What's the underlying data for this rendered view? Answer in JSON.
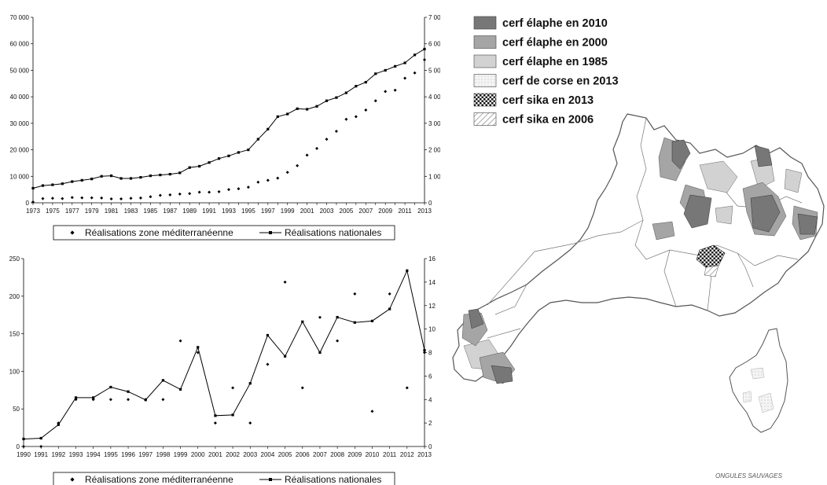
{
  "chart_data": [
    {
      "type": "line",
      "x": [
        "1973",
        "1974",
        "1975",
        "1976",
        "1977",
        "1978",
        "1979",
        "1980",
        "1981",
        "1982",
        "1983",
        "1984",
        "1985",
        "1986",
        "1987",
        "1988",
        "1989",
        "1990",
        "1991",
        "1992",
        "1993",
        "1994",
        "1995",
        "1996",
        "1997",
        "1998",
        "1999",
        "2000",
        "2001",
        "2002",
        "2003",
        "2004",
        "2005",
        "2006",
        "2007",
        "2008",
        "2009",
        "2010",
        "2011",
        "2012",
        "2013"
      ],
      "x_tick_labels": [
        "1973",
        "1975",
        "1977",
        "1979",
        "1981",
        "1983",
        "1985",
        "1987",
        "1989",
        "1991",
        "1993",
        "1995",
        "1997",
        "1999",
        "2001",
        "2003",
        "2005",
        "2007",
        "2009",
        "2011",
        "2013"
      ],
      "series": [
        {
          "name": "Réalisations  zone méditerranéenne",
          "axis": "right",
          "marker": "diamond",
          "values": [
            30,
            160,
            170,
            160,
            200,
            190,
            190,
            180,
            150,
            150,
            170,
            180,
            230,
            280,
            300,
            330,
            350,
            400,
            400,
            420,
            500,
            530,
            590,
            780,
            850,
            930,
            1150,
            1400,
            1800,
            2050,
            2400,
            2700,
            3150,
            3250,
            3500,
            3850,
            4200,
            4250,
            4700,
            4900,
            5400
          ]
        },
        {
          "name": "Réalisations nationales",
          "axis": "left",
          "marker": "square",
          "values": [
            5500,
            6500,
            6800,
            7200,
            8000,
            8500,
            9000,
            10000,
            10200,
            9200,
            9200,
            9600,
            10200,
            10500,
            10800,
            11300,
            13300,
            13800,
            15200,
            16700,
            17700,
            19000,
            20000,
            24000,
            27800,
            32500,
            33500,
            35500,
            35300,
            36400,
            38500,
            39700,
            41500,
            44000,
            45500,
            48700,
            50000,
            51500,
            52800,
            55800,
            58000
          ]
        }
      ],
      "ylim": [
        0,
        70000
      ],
      "yticks": [
        "0",
        "10 000",
        "20 000",
        "30 000",
        "40 000",
        "50 000",
        "60 000",
        "70 000"
      ],
      "y2lim": [
        0,
        7000
      ],
      "y2ticks": [
        "0",
        "1 000",
        "2 000",
        "3 000",
        "4 000",
        "5 000",
        "6 000",
        "7 000"
      ],
      "legend_position": "bottom"
    },
    {
      "type": "line",
      "x": [
        "1990",
        "1991",
        "1992",
        "1993",
        "1994",
        "1995",
        "1996",
        "1997",
        "1998",
        "1999",
        "2000",
        "2001",
        "2002",
        "2003",
        "2004",
        "2005",
        "2006",
        "2007",
        "2008",
        "2009",
        "2010",
        "2011",
        "2012",
        "2013"
      ],
      "series": [
        {
          "name": "Réalisations  zone méditerranéenne",
          "axis": "right",
          "marker": "diamond",
          "values": [
            0,
            0,
            2,
            4,
            4,
            4,
            4,
            4,
            4,
            9,
            8,
            2,
            5,
            2,
            7,
            14,
            5,
            11,
            9,
            13,
            3,
            13,
            5,
            8
          ]
        },
        {
          "name": "Réalisations nationales",
          "axis": "left",
          "marker": "square",
          "values": [
            10,
            11,
            29,
            65,
            65,
            79,
            73,
            62,
            88,
            76,
            132,
            41,
            42,
            84,
            148,
            120,
            166,
            125,
            172,
            165,
            167,
            183,
            234,
            128
          ]
        }
      ],
      "ylim": [
        0,
        250
      ],
      "yticks": [
        "0",
        "50",
        "100",
        "150",
        "200",
        "250"
      ],
      "y2lim": [
        0,
        16
      ],
      "y2ticks": [
        "0",
        "2",
        "4",
        "6",
        "8",
        "10",
        "12",
        "14",
        "16"
      ],
      "legend_position": "bottom"
    }
  ],
  "map": {
    "legend": [
      {
        "label": "cerf élaphe en 2010",
        "color": "#777777",
        "pattern": "solid"
      },
      {
        "label": "cerf élaphe en 2000",
        "color": "#a5a5a5",
        "pattern": "solid"
      },
      {
        "label": "cerf élaphe en 1985",
        "color": "#d2d2d2",
        "pattern": "solid"
      },
      {
        "label": "cerf de corse en 2013",
        "color": "#ececec",
        "pattern": "dots"
      },
      {
        "label": "cerf sika en 2013",
        "color": "#111111",
        "pattern": "checker"
      },
      {
        "label": "cerf sika en 2006",
        "color": "#777777",
        "pattern": "hatch"
      }
    ],
    "logo_text": "ONGULES SAUVAGES"
  }
}
